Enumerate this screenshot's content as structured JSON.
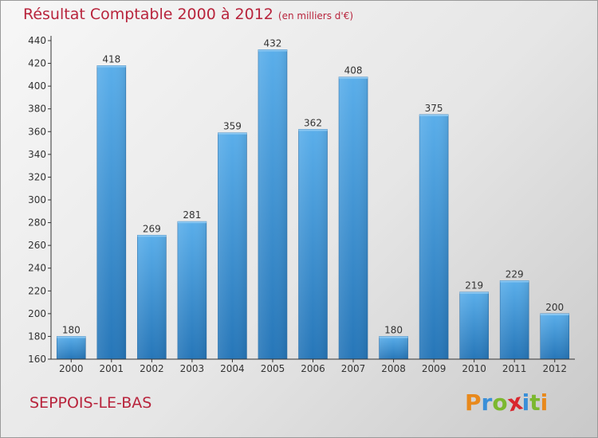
{
  "chart_data": {
    "type": "bar",
    "title": "Résultat Comptable 2000 à 2012",
    "subtitle": "(en milliers d'€)",
    "categories": [
      "2000",
      "2001",
      "2002",
      "2003",
      "2004",
      "2005",
      "2006",
      "2007",
      "2008",
      "2009",
      "2010",
      "2011",
      "2012"
    ],
    "values": [
      180,
      418,
      269,
      281,
      359,
      432,
      362,
      408,
      180,
      375,
      219,
      229,
      200
    ],
    "ylim": [
      160,
      440
    ],
    "yticks": [
      160,
      180,
      200,
      220,
      240,
      260,
      280,
      300,
      320,
      340,
      360,
      380,
      400,
      420,
      440
    ],
    "xlabel": "",
    "ylabel": "",
    "grid": false,
    "bar_color": "#3d8fd6"
  },
  "footer": {
    "commune": "SEPPOIS-LE-BAS",
    "logo_letters": [
      "P",
      "r",
      "o",
      "x",
      "i",
      "t",
      "i"
    ],
    "logo_colors": [
      "#e8891c",
      "#3a8fd8",
      "#7cb82f",
      "#d9272e",
      "#3a8fd8",
      "#7cb82f",
      "#e8891c"
    ]
  },
  "colors": {
    "accent": "#b8243c",
    "axis": "#333333"
  }
}
